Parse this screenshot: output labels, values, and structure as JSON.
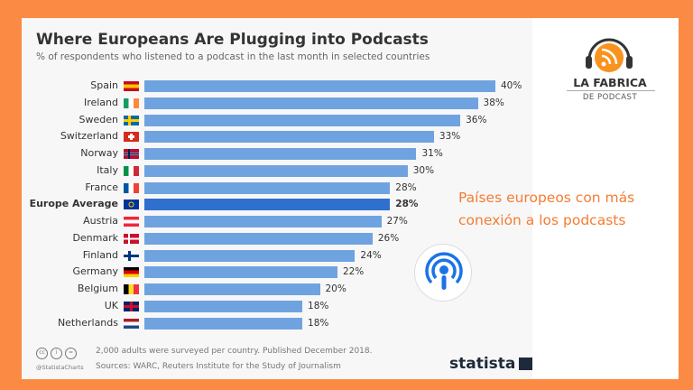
{
  "chart_data": {
    "type": "bar",
    "orientation": "horizontal",
    "title": "Where Europeans Are Plugging into Podcasts",
    "subtitle": "% of respondents who listened to a podcast in the last month in selected countries",
    "categories": [
      "Spain",
      "Ireland",
      "Sweden",
      "Switzerland",
      "Norway",
      "Italy",
      "France",
      "Europe Average",
      "Austria",
      "Denmark",
      "Finland",
      "Germany",
      "Belgium",
      "UK",
      "Netherlands"
    ],
    "values": [
      40,
      38,
      36,
      33,
      31,
      30,
      28,
      28,
      27,
      26,
      24,
      22,
      20,
      18,
      18
    ],
    "value_labels": [
      "40%",
      "38%",
      "36%",
      "33%",
      "31%",
      "30%",
      "28%",
      "28%",
      "27%",
      "26%",
      "24%",
      "22%",
      "20%",
      "18%",
      "18%"
    ],
    "highlight": "Europe Average",
    "xlim": [
      0,
      40
    ],
    "grid": false,
    "colors": {
      "bar": "#6fa3e0",
      "highlight": "#2f6fce"
    },
    "footnote": "2,000 adults were surveyed per country. Published December 2018.",
    "source": "Sources: WARC, Reuters Institute for the Study of Journalism",
    "handle": "@StatistaCharts",
    "brand": "statista"
  },
  "overlay": {
    "logo_line1": "LA FABRICA",
    "logo_line2": "DE PODCAST",
    "caption_line1": "Países europeos con más",
    "caption_line2": "conexión a los podcasts",
    "accent": "#fb8a45"
  }
}
